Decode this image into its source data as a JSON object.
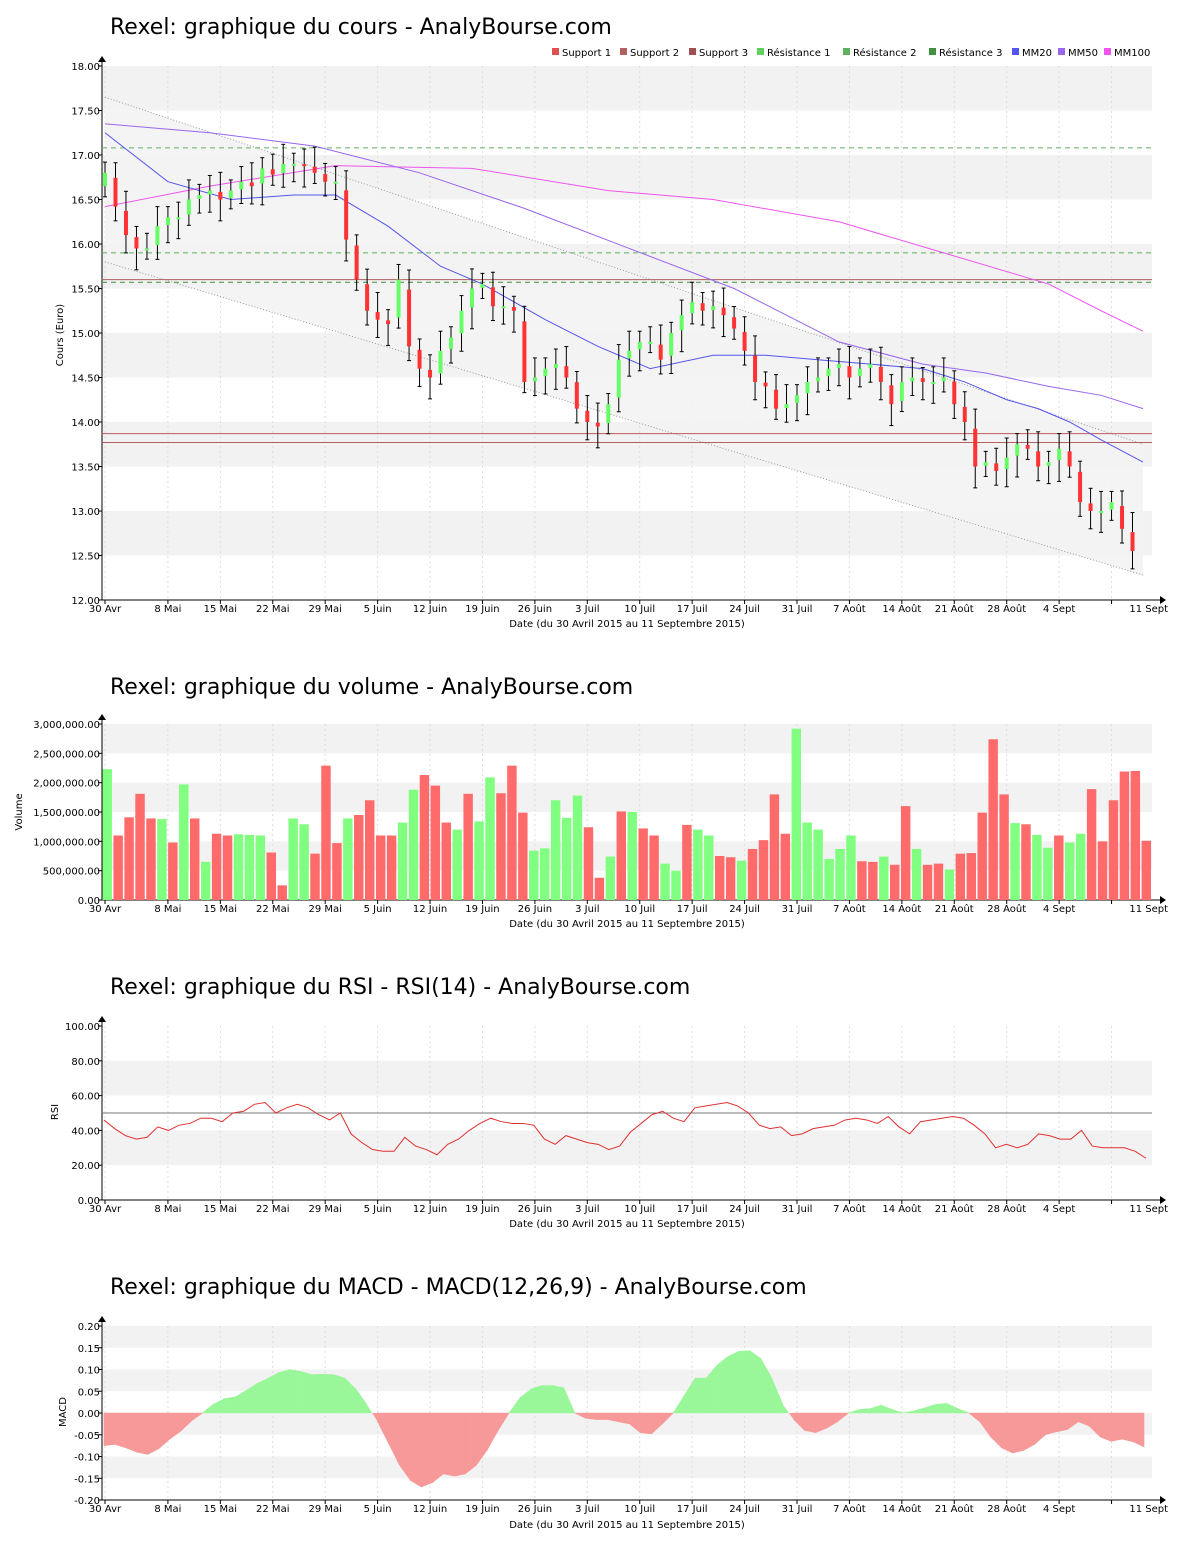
{
  "colors": {
    "up": "#66ff66",
    "down": "#ff3333",
    "volume_up": "#80ff80",
    "volume_down": "#ff6b6b",
    "support": "#b06060",
    "resistance": "#60b060",
    "mm20": "#5555ee",
    "mm50": "#9966ee",
    "mm100": "#ee55ee",
    "rsi": "#e03030",
    "macd_pos": "#99f799",
    "macd_neg": "#f79999",
    "band_fill": "#f0f0f0"
  },
  "x_tick_labels": [
    "30 Avr",
    "8 Mai",
    "15 Mai",
    "22 Mai",
    "29 Mai",
    "5 Juin",
    "12 Juin",
    "19 Juin",
    "26 Juin",
    "3 Juil",
    "10 Juil",
    "17 Juil",
    "24 Juil",
    "31 Juil",
    "7 Août",
    "14 Août",
    "21 Août",
    "28 Août",
    "4 Sept",
    "11 Sept"
  ],
  "date_range_label": "Date (du 30 Avril 2015 au 11 Septembre 2015)",
  "chart_data": [
    {
      "type": "candlestick",
      "title": "Rexel: graphique du cours - AnalyBourse.com",
      "ylabel": "Cours (Euro)",
      "xlabel": "Date (du 30 Avril 2015 au 11 Septembre 2015)",
      "ylim": [
        12.0,
        18.0
      ],
      "yticks": [
        "12.00",
        "12.50",
        "13.00",
        "13.50",
        "14.00",
        "14.50",
        "15.00",
        "15.50",
        "16.00",
        "16.50",
        "17.00",
        "17.50",
        "18.00"
      ],
      "legend_position": "top-right",
      "legend": [
        "Support 1",
        "Support 2",
        "Support 3",
        "Résistance 1",
        "Résistance 2",
        "Résistance 3",
        "MM20",
        "MM50",
        "MM100"
      ],
      "levels": {
        "support_1": 13.87,
        "support_2": 13.77,
        "support_3": 15.6,
        "resistance_1": 15.9,
        "resistance_2": 17.08,
        "resistance_3": 15.57
      },
      "closes": [
        16.8,
        16.42,
        16.1,
        15.95,
        15.95,
        16.2,
        16.3,
        16.3,
        16.5,
        16.55,
        16.6,
        16.5,
        16.6,
        16.7,
        16.65,
        16.85,
        16.78,
        16.9,
        16.9,
        16.88,
        16.8,
        16.7,
        16.7,
        16.05,
        15.6,
        15.25,
        15.15,
        15.1,
        15.6,
        14.85,
        14.6,
        14.5,
        14.8,
        14.95,
        15.25,
        15.5,
        15.55,
        15.3,
        15.3,
        15.25,
        14.45,
        14.5,
        14.6,
        14.65,
        14.5,
        14.15,
        14.0,
        13.95,
        14.2,
        14.7,
        14.8,
        14.9,
        14.9,
        14.7,
        15.0,
        15.2,
        15.35,
        15.25,
        15.3,
        15.2,
        15.05,
        14.8,
        14.45,
        14.4,
        14.15,
        14.2,
        14.3,
        14.45,
        14.5,
        14.6,
        14.65,
        14.5,
        14.6,
        14.65,
        14.45,
        14.2,
        14.45,
        14.5,
        14.45,
        14.45,
        14.5,
        14.2,
        14.0,
        13.5,
        13.55,
        13.45,
        13.6,
        13.75,
        13.7,
        13.5,
        13.55,
        13.7,
        13.5,
        13.1,
        13.0,
        13.0,
        13.1,
        12.8,
        12.55
      ],
      "ma": {
        "mm20": [
          [
            0,
            17.25
          ],
          [
            6,
            16.7
          ],
          [
            12,
            16.5
          ],
          [
            18,
            16.55
          ],
          [
            22,
            16.55
          ],
          [
            27,
            16.2
          ],
          [
            32,
            15.75
          ],
          [
            36,
            15.55
          ],
          [
            42,
            15.15
          ],
          [
            47,
            14.85
          ],
          [
            52,
            14.6
          ],
          [
            58,
            14.75
          ],
          [
            63,
            14.75
          ],
          [
            68,
            14.7
          ],
          [
            73,
            14.65
          ],
          [
            78,
            14.6
          ],
          [
            82,
            14.45
          ],
          [
            86,
            14.25
          ],
          [
            89,
            14.15
          ],
          [
            92,
            14.0
          ],
          [
            95,
            13.8
          ],
          [
            99,
            13.55
          ]
        ],
        "mm50": [
          [
            0,
            17.35
          ],
          [
            10,
            17.25
          ],
          [
            20,
            17.1
          ],
          [
            30,
            16.8
          ],
          [
            40,
            16.4
          ],
          [
            50,
            15.95
          ],
          [
            60,
            15.5
          ],
          [
            70,
            14.9
          ],
          [
            78,
            14.65
          ],
          [
            84,
            14.55
          ],
          [
            90,
            14.4
          ],
          [
            95,
            14.3
          ],
          [
            99,
            14.15
          ]
        ],
        "mm100": [
          [
            0,
            16.42
          ],
          [
            10,
            16.65
          ],
          [
            22,
            16.88
          ],
          [
            35,
            16.85
          ],
          [
            48,
            16.6
          ],
          [
            58,
            16.5
          ],
          [
            70,
            16.25
          ],
          [
            80,
            15.9
          ],
          [
            90,
            15.55
          ],
          [
            95,
            15.25
          ],
          [
            99,
            15.02
          ]
        ]
      },
      "channel": {
        "top": [
          [
            0,
            17.65
          ],
          [
            99,
            13.75
          ]
        ],
        "bottom": [
          [
            0,
            15.8
          ],
          [
            99,
            12.28
          ]
        ]
      }
    },
    {
      "type": "bar",
      "title": "Rexel: graphique du volume - AnalyBourse.com",
      "ylabel": "Volume",
      "xlabel": "Date (du 30 Avril 2015 au 11 Septembre 2015)",
      "ylim": [
        0,
        3000000
      ],
      "yticks": [
        "0.00",
        "500,000.00",
        "1,000,000.00",
        "1,500,000.00",
        "2,000,000.00",
        "2,500,000.00",
        "3,000,000.00"
      ],
      "values": [
        2230000,
        1100000,
        1410000,
        1810000,
        1390000,
        1380000,
        980000,
        1970000,
        1390000,
        650000,
        1130000,
        1100000,
        1120000,
        1110000,
        1100000,
        810000,
        250000,
        1390000,
        1290000,
        790000,
        2290000,
        970000,
        1390000,
        1450000,
        1700000,
        1100000,
        1100000,
        1320000,
        1880000,
        2130000,
        1950000,
        1320000,
        1200000,
        1810000,
        1340000,
        2090000,
        1820000,
        2290000,
        1490000,
        840000,
        880000,
        1700000,
        1400000,
        1780000,
        1240000,
        380000,
        740000,
        1510000,
        1500000,
        1220000,
        1100000,
        620000,
        500000,
        1280000,
        1200000,
        1100000,
        750000,
        730000,
        670000,
        870000,
        1020000,
        1800000,
        1130000,
        2920000,
        1320000,
        1200000,
        700000,
        870000,
        1100000,
        660000,
        650000,
        740000,
        600000,
        1600000,
        870000,
        600000,
        620000,
        520000,
        790000,
        800000,
        1490000,
        2740000,
        1800000,
        1310000,
        1290000,
        1110000,
        890000,
        1100000,
        980000,
        1130000,
        1890000,
        1000000,
        1700000,
        2190000,
        2200000,
        1010000
      ],
      "up": [
        true,
        false,
        false,
        false,
        false,
        true,
        false,
        true,
        false,
        true,
        false,
        false,
        true,
        true,
        true,
        false,
        false,
        true,
        true,
        false,
        false,
        false,
        true,
        false,
        false,
        false,
        false,
        true,
        true,
        false,
        false,
        false,
        true,
        false,
        true,
        true,
        false,
        false,
        false,
        true,
        true,
        true,
        true,
        true,
        false,
        false,
        true,
        false,
        true,
        false,
        false,
        true,
        true,
        false,
        true,
        true,
        false,
        false,
        true,
        false,
        false,
        false,
        false,
        true,
        true,
        true,
        true,
        true,
        true,
        false,
        false,
        true,
        false,
        false,
        true,
        false,
        false,
        true,
        false,
        false,
        false,
        false,
        false,
        true,
        false,
        true,
        true,
        false,
        true,
        true,
        false,
        false,
        false,
        false,
        false,
        false
      ]
    },
    {
      "type": "line",
      "title": "Rexel: graphique du RSI - RSI(14) - AnalyBourse.com",
      "ylabel": "RSI",
      "xlabel": "Date (du 30 Avril 2015 au 11 Septembre 2015)",
      "ylim": [
        0,
        100
      ],
      "yticks": [
        "0.00",
        "20.00",
        "40.00",
        "60.00",
        "80.00",
        "100.00"
      ],
      "reference_line": 50,
      "values": [
        46,
        41,
        37,
        35,
        36,
        42,
        40,
        43,
        44,
        47,
        47,
        45,
        50,
        51,
        55,
        56,
        50,
        53,
        55,
        53,
        49,
        46,
        50,
        38,
        33,
        29,
        28,
        28,
        36,
        31,
        29,
        26,
        32,
        35,
        40,
        44,
        47,
        45,
        44,
        44,
        43,
        35,
        32,
        37,
        35,
        33,
        32,
        29,
        31,
        39,
        44,
        49,
        51,
        47,
        45,
        53,
        54,
        55,
        56,
        54,
        50,
        43,
        41,
        42,
        37,
        38,
        41,
        42,
        43,
        46,
        47,
        46,
        44,
        48,
        42,
        38,
        45,
        46,
        47,
        48,
        47,
        43,
        38,
        30,
        32,
        30,
        32,
        38,
        37,
        35,
        35,
        40,
        31,
        30,
        30,
        30,
        28,
        24
      ],
      "color": "#e03030"
    },
    {
      "type": "area",
      "title": "Rexel: graphique du MACD - MACD(12,26,9) - AnalyBourse.com",
      "ylabel": "MACD",
      "xlabel": "Date (du 30 Avril 2015 au 11 Septembre 2015)",
      "ylim": [
        -0.2,
        0.2
      ],
      "yticks": [
        "-0.20",
        "-0.15",
        "-0.10",
        "-0.05",
        "0.00",
        "0.05",
        "0.10",
        "0.15",
        "0.20"
      ],
      "values": [
        -0.075,
        -0.072,
        -0.08,
        -0.09,
        -0.095,
        -0.082,
        -0.06,
        -0.042,
        -0.018,
        0.0,
        0.02,
        0.033,
        0.037,
        0.052,
        0.068,
        0.08,
        0.093,
        0.1,
        0.095,
        0.088,
        0.089,
        0.088,
        0.08,
        0.055,
        0.02,
        -0.02,
        -0.07,
        -0.12,
        -0.155,
        -0.17,
        -0.16,
        -0.14,
        -0.145,
        -0.14,
        -0.12,
        -0.085,
        -0.04,
        0.0,
        0.035,
        0.055,
        0.063,
        0.063,
        0.058,
        0.0,
        -0.012,
        -0.015,
        -0.015,
        -0.02,
        -0.025,
        -0.045,
        -0.048,
        -0.025,
        0.0,
        0.04,
        0.08,
        0.08,
        0.11,
        0.13,
        0.142,
        0.143,
        0.125,
        0.08,
        0.02,
        -0.015,
        -0.04,
        -0.045,
        -0.035,
        -0.02,
        0.0,
        0.008,
        0.01,
        0.018,
        0.008,
        0.0,
        0.005,
        0.012,
        0.02,
        0.022,
        0.01,
        0.0,
        -0.02,
        -0.055,
        -0.08,
        -0.092,
        -0.086,
        -0.072,
        -0.05,
        -0.043,
        -0.038,
        -0.02,
        -0.03,
        -0.055,
        -0.065,
        -0.06,
        -0.066,
        -0.078
      ],
      "color_positive": "#99f799",
      "color_negative": "#f79999"
    }
  ]
}
